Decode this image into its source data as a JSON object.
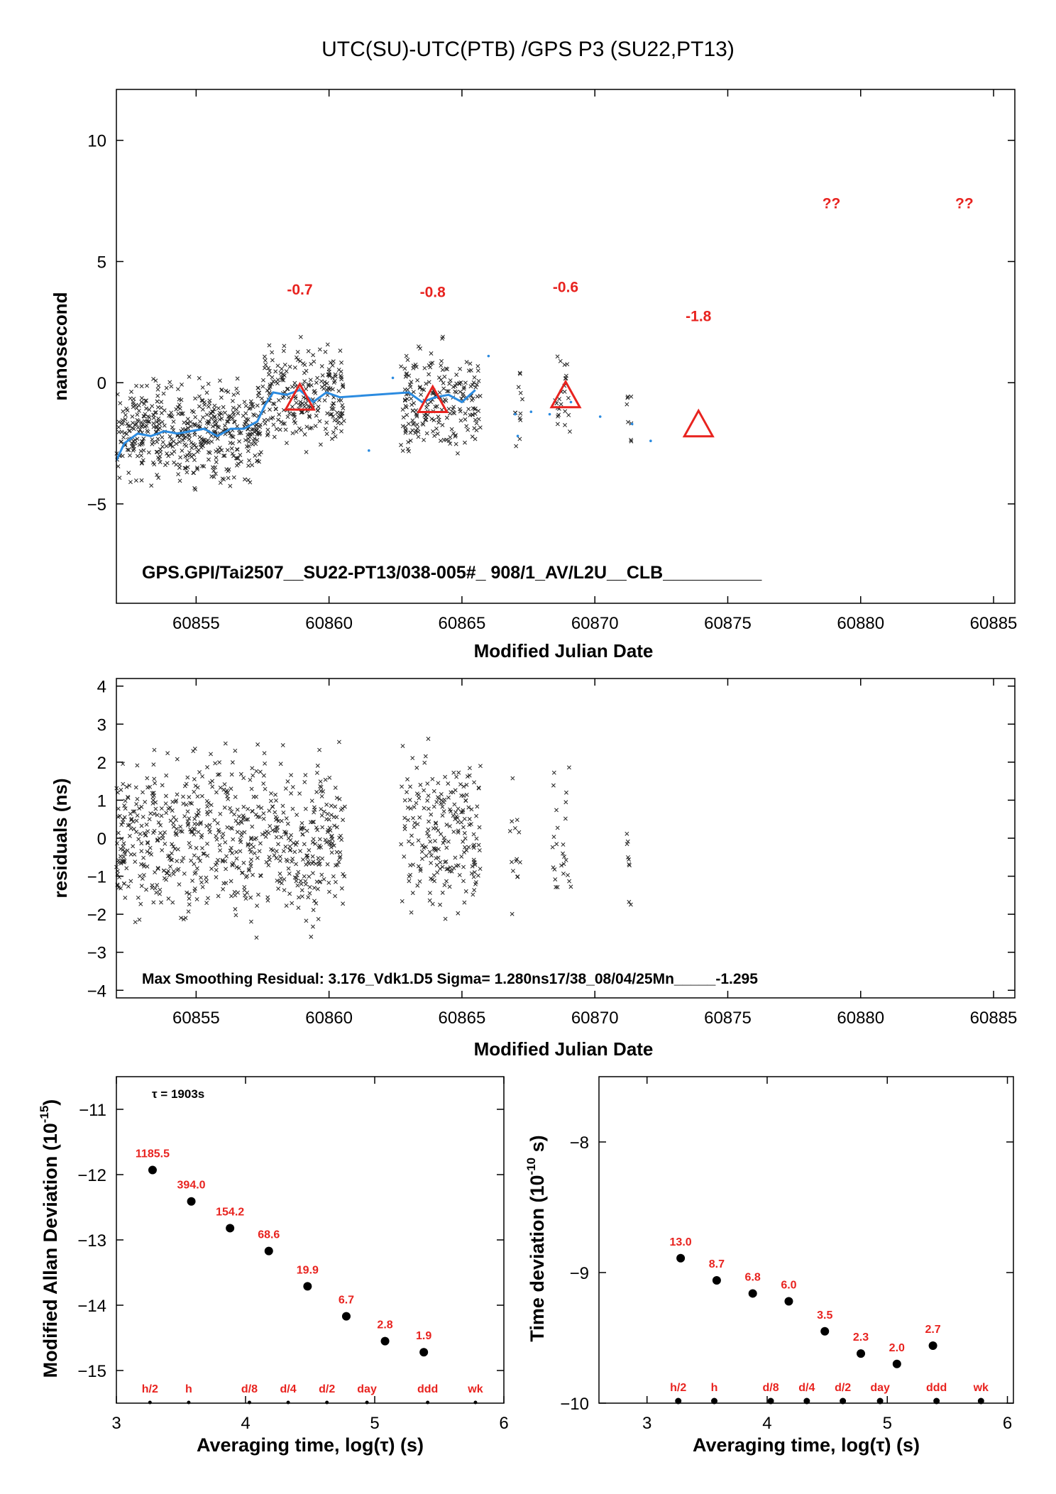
{
  "chart_data": [
    {
      "type": "scatter",
      "title": "UTC(SU)-UTC(PTB)  /GPS  P3  (SU22,PT13)",
      "xlabel": "Modified Julian Date",
      "ylabel": "nanosecond",
      "xlim": [
        60852.0,
        60885.8
      ],
      "ylim": [
        -9.1,
        12.1
      ],
      "xticks": [
        60855,
        60860,
        60865,
        60870,
        60875,
        60880,
        60885
      ],
      "yticks": [
        -5,
        0,
        5,
        10
      ],
      "caption": "GPS.GPI/Tai2507__SU22-PT13/038-005#_  908/1_AV/L2U__CLB__________",
      "markers": [
        {
          "x": 60858.9,
          "y": -0.7,
          "label": "-0.7"
        },
        {
          "x": 60863.9,
          "y": -0.8,
          "label": "-0.8"
        },
        {
          "x": 60868.9,
          "y": -0.6,
          "label": "-0.6"
        },
        {
          "x": 60873.9,
          "y": -1.8,
          "label": "-1.8"
        },
        {
          "x": 60878.9,
          "y": null,
          "label": "??"
        },
        {
          "x": 60883.9,
          "y": null,
          "label": "??"
        }
      ],
      "smooth": [
        [
          60852.0,
          -3.2
        ],
        [
          60852.3,
          -2.5
        ],
        [
          60852.8,
          -2.1
        ],
        [
          60853.3,
          -2.2
        ],
        [
          60853.8,
          -2.0
        ],
        [
          60854.3,
          -2.1
        ],
        [
          60854.8,
          -2.0
        ],
        [
          60855.3,
          -1.9
        ],
        [
          60855.8,
          -2.2
        ],
        [
          60856.3,
          -1.9
        ],
        [
          60856.8,
          -1.9
        ],
        [
          60857.3,
          -1.6
        ],
        [
          60857.6,
          -0.9
        ],
        [
          60857.9,
          -0.4
        ],
        [
          60858.4,
          -0.5
        ],
        [
          60858.9,
          -0.3
        ],
        [
          60859.4,
          -0.8
        ],
        [
          60859.9,
          -0.4
        ],
        [
          60860.4,
          -0.6
        ],
        [
          60863.0,
          -0.4
        ],
        [
          60863.5,
          -0.8
        ],
        [
          60864.0,
          -0.6
        ],
        [
          60864.5,
          -0.5
        ],
        [
          60865.0,
          -0.8
        ],
        [
          60865.5,
          -0.3
        ]
      ],
      "cluster_groups": [
        {
          "x": [
            60852.0,
            60857.5
          ],
          "y": [
            -4.8,
            0.8
          ],
          "n": 520
        },
        {
          "x": [
            60857.5,
            60860.6
          ],
          "y": [
            -3.7,
            2.3
          ],
          "n": 240
        },
        {
          "x": [
            60862.7,
            60865.7
          ],
          "y": [
            -3.9,
            2.3
          ],
          "n": 220
        },
        {
          "x": [
            60867.0,
            60867.3
          ],
          "y": [
            -3.2,
            0.9
          ],
          "n": 12
        },
        {
          "x": [
            60868.5,
            60869.1
          ],
          "y": [
            -3.2,
            1.8
          ],
          "n": 24
        },
        {
          "x": [
            60871.2,
            60871.4
          ],
          "y": [
            -3.2,
            0.8
          ],
          "n": 8
        }
      ]
    },
    {
      "type": "scatter",
      "xlabel": "Modified Julian Date",
      "ylabel": "residuals (ns)",
      "xlim": [
        60852.0,
        60885.8
      ],
      "ylim": [
        -4.2,
        4.2
      ],
      "xticks": [
        60855,
        60860,
        60865,
        60870,
        60875,
        60880,
        60885
      ],
      "yticks": [
        -4,
        -3,
        -2,
        -1,
        0,
        1,
        2,
        3,
        4
      ],
      "caption": "Max Smoothing Residual: 3.176_Vdk1.D5  Sigma= 1.280ns17/38_08/04/25Mn_____-1.295",
      "cluster_groups": [
        {
          "x": [
            60852.0,
            60860.6
          ],
          "y": [
            -3.0,
            3.1
          ],
          "n": 700
        },
        {
          "x": [
            60862.7,
            60865.7
          ],
          "y": [
            -2.8,
            3.0
          ],
          "n": 220
        },
        {
          "x": [
            60866.8,
            60867.2
          ],
          "y": [
            -2.5,
            2.2
          ],
          "n": 14
        },
        {
          "x": [
            60868.4,
            60869.1
          ],
          "y": [
            -2.6,
            2.3
          ],
          "n": 26
        },
        {
          "x": [
            60871.2,
            60871.4
          ],
          "y": [
            -2.5,
            1.5
          ],
          "n": 9
        }
      ]
    },
    {
      "type": "scatter",
      "xlabel": "Averaging time, log(τ) (s)",
      "ylabel": "Modified Allan Deviation (10^-15)",
      "xlim": [
        3,
        6
      ],
      "ylim": [
        -15.5,
        -10.5
      ],
      "xticks": [
        3,
        4,
        5,
        6
      ],
      "yticks": [
        -11,
        -12,
        -13,
        -14,
        -15
      ],
      "note": "τ = 1903s",
      "points": [
        {
          "x": 3.28,
          "y": -11.93,
          "label": "1185.5"
        },
        {
          "x": 3.58,
          "y": -12.41,
          "label": "394.0"
        },
        {
          "x": 3.88,
          "y": -12.82,
          "label": "154.2"
        },
        {
          "x": 4.18,
          "y": -13.17,
          "label": "68.6"
        },
        {
          "x": 4.48,
          "y": -13.71,
          "label": "19.9"
        },
        {
          "x": 4.78,
          "y": -14.17,
          "label": "6.7"
        },
        {
          "x": 5.08,
          "y": -14.55,
          "label": "2.8"
        },
        {
          "x": 5.38,
          "y": -14.72,
          "label": "1.9"
        }
      ],
      "scale_labels": [
        {
          "x": 3.26,
          "label": "h/2"
        },
        {
          "x": 3.56,
          "label": "h"
        },
        {
          "x": 4.03,
          "label": "d/8"
        },
        {
          "x": 4.33,
          "label": "d/4"
        },
        {
          "x": 4.63,
          "label": "d/2"
        },
        {
          "x": 4.94,
          "label": "day"
        },
        {
          "x": 5.41,
          "label": "ddd"
        },
        {
          "x": 5.78,
          "label": "wk"
        }
      ]
    },
    {
      "type": "scatter",
      "xlabel": "Averaging time, log(τ) (s)",
      "ylabel": "Time deviation (10^-10 s)",
      "xlim": [
        2.6,
        6.05
      ],
      "ylim": [
        -10,
        -7.5
      ],
      "xticks": [
        3,
        4,
        5,
        6
      ],
      "yticks": [
        -8,
        -9,
        -10
      ],
      "points": [
        {
          "x": 3.28,
          "y": -8.89,
          "label": "13.0"
        },
        {
          "x": 3.58,
          "y": -9.06,
          "label": "8.7"
        },
        {
          "x": 3.88,
          "y": -9.16,
          "label": "6.8"
        },
        {
          "x": 4.18,
          "y": -9.22,
          "label": "6.0"
        },
        {
          "x": 4.48,
          "y": -9.45,
          "label": "3.5"
        },
        {
          "x": 4.78,
          "y": -9.62,
          "label": "2.3"
        },
        {
          "x": 5.08,
          "y": -9.7,
          "label": "2.0"
        },
        {
          "x": 5.38,
          "y": -9.56,
          "label": "2.7"
        }
      ],
      "scale_labels": [
        {
          "x": 3.26,
          "label": "h/2"
        },
        {
          "x": 3.56,
          "label": "h"
        },
        {
          "x": 4.03,
          "label": "d/8"
        },
        {
          "x": 4.33,
          "label": "d/4"
        },
        {
          "x": 4.63,
          "label": "d/2"
        },
        {
          "x": 4.94,
          "label": "day"
        },
        {
          "x": 5.41,
          "label": "ddd"
        },
        {
          "x": 5.78,
          "label": "wk"
        }
      ]
    }
  ]
}
